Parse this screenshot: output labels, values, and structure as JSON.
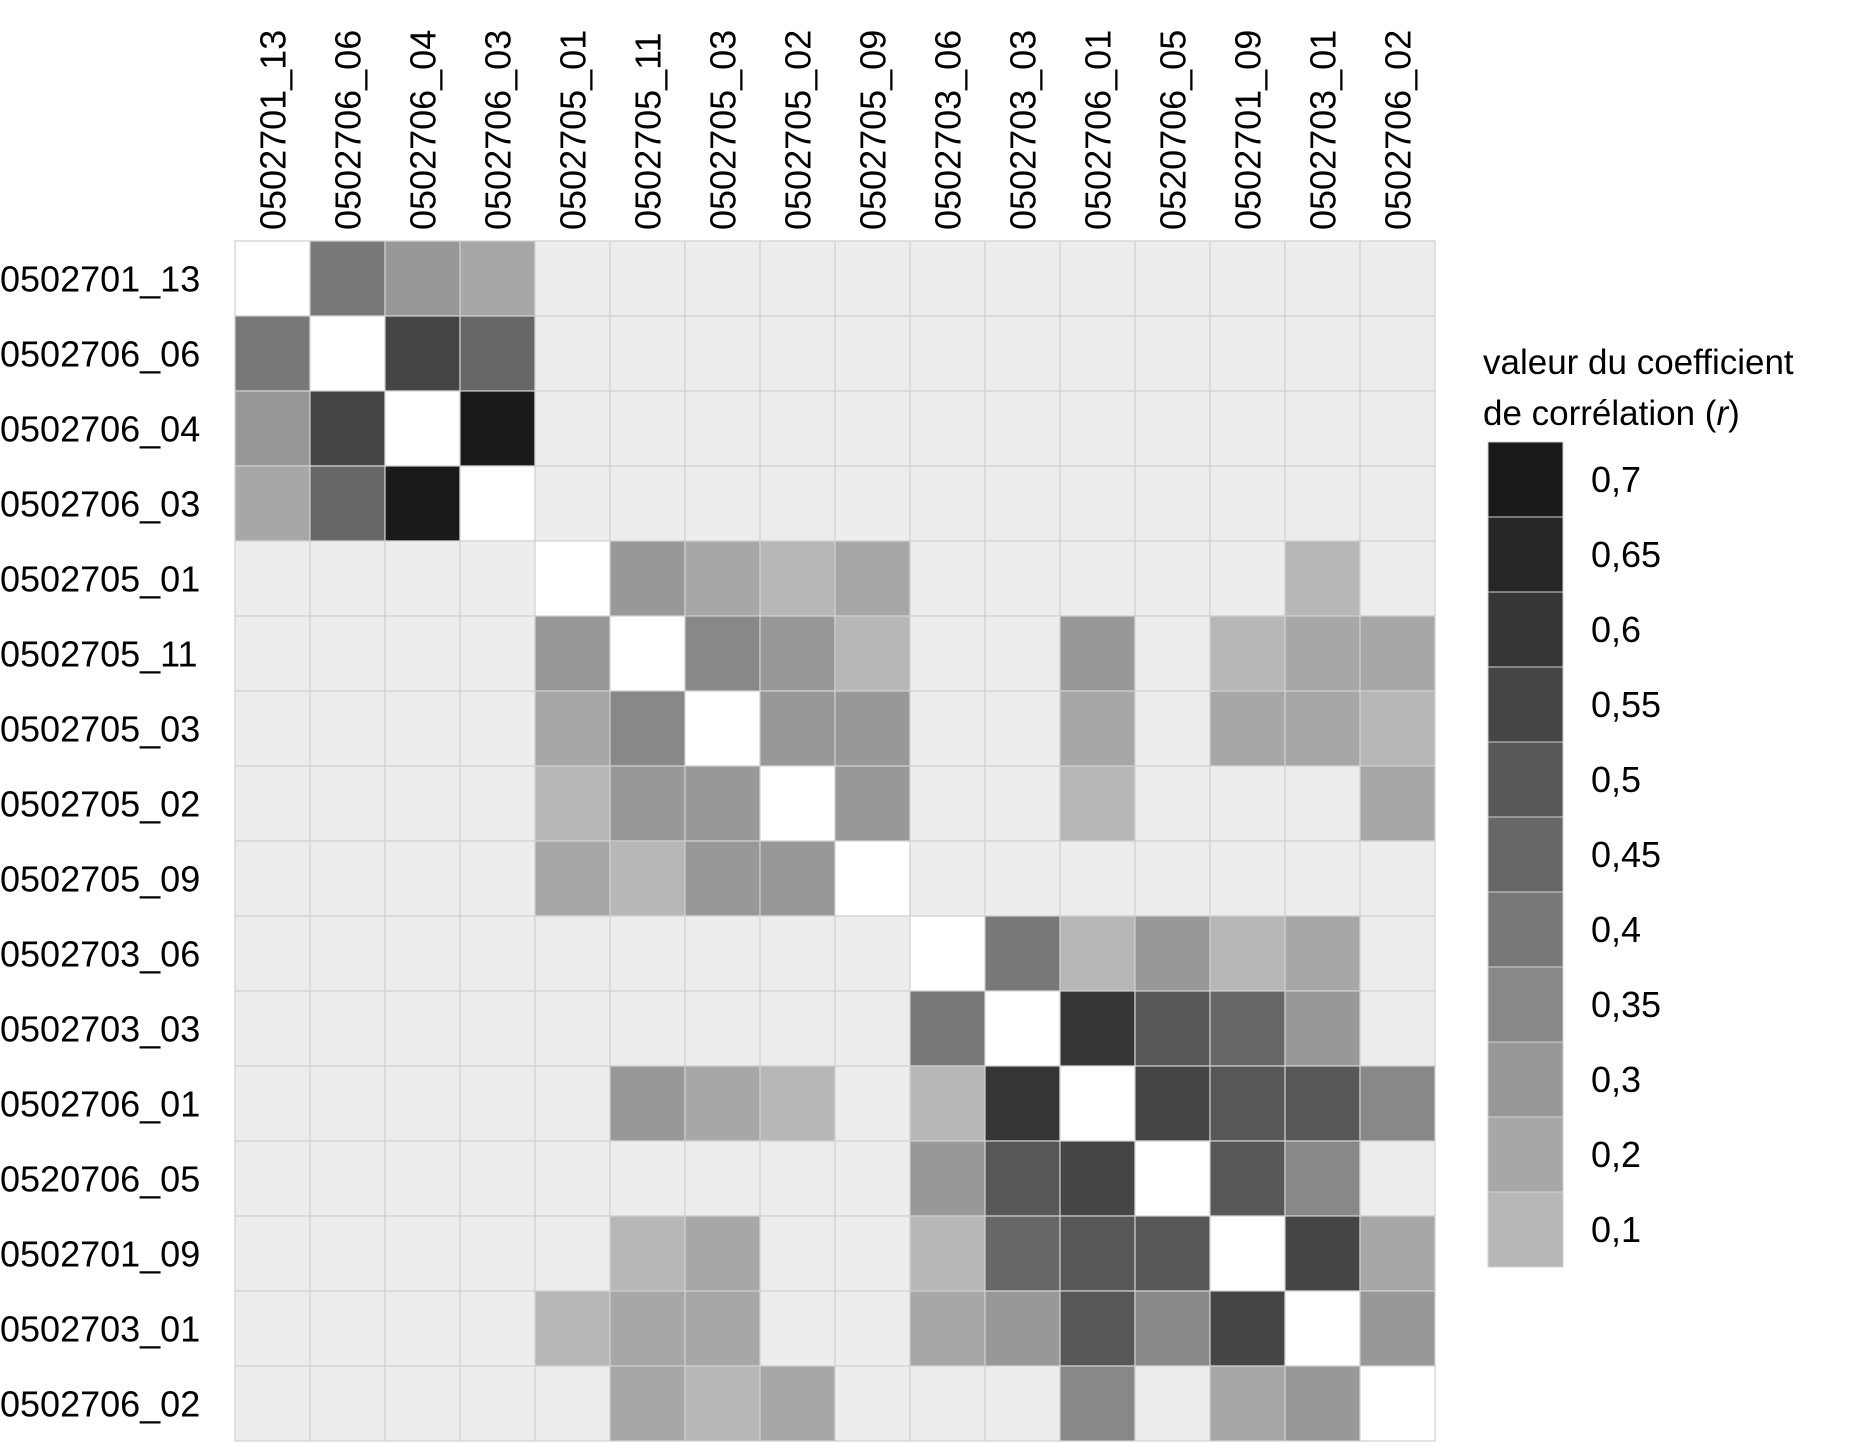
{
  "chart_data": {
    "type": "heatmap",
    "title": "",
    "legend": {
      "title_line1": "valeur du coefficient",
      "title_line2_prefix": "de corrélation (",
      "title_line2_var": "r",
      "title_line2_suffix": ")",
      "placement": "right",
      "levels": [
        {
          "label": "0,7",
          "value": 0.7,
          "color": "#1a1a1a"
        },
        {
          "label": "0,65",
          "value": 0.65,
          "color": "#262626"
        },
        {
          "label": "0,6",
          "value": 0.6,
          "color": "#363636"
        },
        {
          "label": "0,55",
          "value": 0.55,
          "color": "#454545"
        },
        {
          "label": "0,5",
          "value": 0.5,
          "color": "#575757"
        },
        {
          "label": "0,45",
          "value": 0.45,
          "color": "#676767"
        },
        {
          "label": "0,4",
          "value": 0.4,
          "color": "#787878"
        },
        {
          "label": "0,35",
          "value": 0.35,
          "color": "#888888"
        },
        {
          "label": "0,3",
          "value": 0.3,
          "color": "#989898"
        },
        {
          "label": "0,2",
          "value": 0.2,
          "color": "#a7a7a7"
        },
        {
          "label": "0,1",
          "value": 0.1,
          "color": "#b7b7b7"
        }
      ]
    },
    "empty_color": "#ededed",
    "diagonal_color": "#ffffff",
    "grid_color": "#d0d0d0",
    "labels": [
      "0502701_13",
      "0502706_06",
      "0502706_04",
      "0502706_03",
      "0502705_01",
      "0502705_11",
      "0502705_03",
      "0502705_02",
      "0502705_09",
      "0502703_06",
      "0502703_03",
      "0502706_01",
      "0520706_05",
      "0502701_09",
      "0502703_01",
      "0502706_02"
    ],
    "matrix": [
      [
        1,
        0.4,
        0.3,
        0.2,
        null,
        null,
        null,
        null,
        null,
        null,
        null,
        null,
        null,
        null,
        null,
        null
      ],
      [
        0.4,
        1,
        0.55,
        0.45,
        null,
        null,
        null,
        null,
        null,
        null,
        null,
        null,
        null,
        null,
        null,
        null
      ],
      [
        0.3,
        0.55,
        1,
        0.7,
        null,
        null,
        null,
        null,
        null,
        null,
        null,
        null,
        null,
        null,
        null,
        null
      ],
      [
        0.2,
        0.45,
        0.7,
        1,
        null,
        null,
        null,
        null,
        null,
        null,
        null,
        null,
        null,
        null,
        null,
        null
      ],
      [
        null,
        null,
        null,
        null,
        1,
        0.3,
        0.2,
        0.1,
        0.2,
        null,
        null,
        null,
        null,
        null,
        0.1,
        null
      ],
      [
        null,
        null,
        null,
        null,
        0.3,
        1,
        0.35,
        0.3,
        0.1,
        null,
        null,
        0.3,
        null,
        0.1,
        0.2,
        0.2
      ],
      [
        null,
        null,
        null,
        null,
        0.2,
        0.35,
        1,
        0.3,
        0.3,
        null,
        null,
        0.2,
        null,
        0.2,
        0.2,
        0.1
      ],
      [
        null,
        null,
        null,
        null,
        0.1,
        0.3,
        0.3,
        1,
        0.3,
        null,
        null,
        0.1,
        null,
        null,
        null,
        0.2
      ],
      [
        null,
        null,
        null,
        null,
        0.2,
        0.1,
        0.3,
        0.3,
        1,
        null,
        null,
        null,
        null,
        null,
        null,
        null
      ],
      [
        null,
        null,
        null,
        null,
        null,
        null,
        null,
        null,
        null,
        1,
        0.4,
        0.1,
        0.3,
        0.1,
        0.2,
        null
      ],
      [
        null,
        null,
        null,
        null,
        null,
        null,
        null,
        null,
        null,
        0.4,
        1,
        0.6,
        0.5,
        0.45,
        0.3,
        null
      ],
      [
        null,
        null,
        null,
        null,
        null,
        0.3,
        0.2,
        0.1,
        null,
        0.1,
        0.6,
        1,
        0.55,
        0.5,
        0.5,
        0.35
      ],
      [
        null,
        null,
        null,
        null,
        null,
        null,
        null,
        null,
        null,
        0.3,
        0.5,
        0.55,
        1,
        0.5,
        0.35,
        null
      ],
      [
        null,
        null,
        null,
        null,
        null,
        0.1,
        0.2,
        null,
        null,
        0.1,
        0.45,
        0.5,
        0.5,
        1,
        0.55,
        0.2
      ],
      [
        null,
        null,
        null,
        null,
        0.1,
        0.2,
        0.2,
        null,
        null,
        0.2,
        0.3,
        0.5,
        0.35,
        0.55,
        1,
        0.3
      ],
      [
        null,
        null,
        null,
        null,
        null,
        0.2,
        0.1,
        0.2,
        null,
        null,
        null,
        0.35,
        null,
        0.2,
        0.3,
        1
      ]
    ]
  }
}
